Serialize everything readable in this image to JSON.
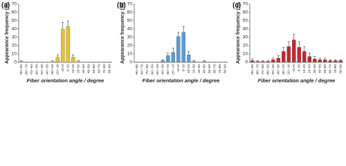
{
  "chart_data": [
    {
      "type": "bar",
      "panel_label": "(a)",
      "ylabel": "Appearance frequency (%)",
      "xlabel": "Fiber orientation angle / degree",
      "categories": [
        "-90~-80",
        "-80~-70",
        "-70~-60",
        "-60~-50",
        "-50~-40",
        "-40~-30",
        "-30~-20",
        "-20~-10",
        "-10~0",
        "0~10",
        "10~20",
        "20~30",
        "30~40",
        "40~50",
        "50~60",
        "60~70",
        "70~80",
        "80~90"
      ],
      "values": [
        1,
        0,
        0,
        0,
        0,
        0,
        1,
        6,
        40,
        43,
        6,
        1,
        0,
        0,
        0,
        0,
        0,
        0
      ],
      "errors": [
        1,
        0,
        0,
        0,
        0,
        0,
        1,
        3,
        8,
        7,
        3,
        1,
        0,
        0,
        0,
        0,
        0,
        0
      ],
      "color": "#e9c02b",
      "ylim": [
        0,
        70
      ],
      "yticks": [
        0,
        10,
        20,
        30,
        40,
        50,
        60,
        70
      ]
    },
    {
      "type": "bar",
      "panel_label": "(b)",
      "ylabel": "Appearance frequency (%)",
      "xlabel": "Fiber orientation angle / degree",
      "categories": [
        "-90~-80",
        "-80~-70",
        "-70~-60",
        "-60~-50",
        "-50~-40",
        "-40~-30",
        "-30~-20",
        "-20~-10",
        "-10~0",
        "0~10",
        "10~20",
        "20~30",
        "30~40",
        "40~50",
        "50~60",
        "60~70",
        "70~80",
        "80~90"
      ],
      "values": [
        0,
        0,
        0,
        0,
        0,
        2,
        8,
        12,
        31,
        36,
        9,
        1,
        0,
        1,
        0,
        0,
        0,
        0
      ],
      "errors": [
        0,
        0,
        0,
        0,
        0,
        1,
        3,
        5,
        5,
        7,
        4,
        1,
        0,
        1,
        0,
        0,
        0,
        0
      ],
      "color": "#5b9bd5",
      "ylim": [
        0,
        70
      ],
      "yticks": [
        0,
        10,
        20,
        30,
        40,
        50,
        60,
        70
      ]
    },
    {
      "type": "bar",
      "panel_label": "(c)",
      "ylabel": "Appearance frequency (%)",
      "xlabel": "Fiber orientation angle / degree",
      "categories": [
        "-90~-80",
        "-80~-70",
        "-70~-60",
        "-60~-50",
        "-50~-40",
        "-40~-30",
        "-30~-20",
        "-20~-10",
        "-10~0",
        "0~10",
        "10~20",
        "20~30",
        "30~40",
        "40~50",
        "50~60",
        "60~70",
        "70~80",
        "80~90"
      ],
      "values": [
        2,
        1,
        1,
        1,
        3,
        5,
        13,
        19,
        27,
        18,
        13,
        7,
        4,
        3,
        3,
        2,
        2,
        2
      ],
      "errors": [
        2,
        1,
        1,
        1,
        2,
        3,
        5,
        6,
        7,
        7,
        6,
        4,
        3,
        2,
        2,
        1,
        1,
        1
      ],
      "color": "#c0282e",
      "ylim": [
        0,
        70
      ],
      "yticks": [
        0,
        10,
        20,
        30,
        40,
        50,
        60,
        70
      ]
    }
  ]
}
